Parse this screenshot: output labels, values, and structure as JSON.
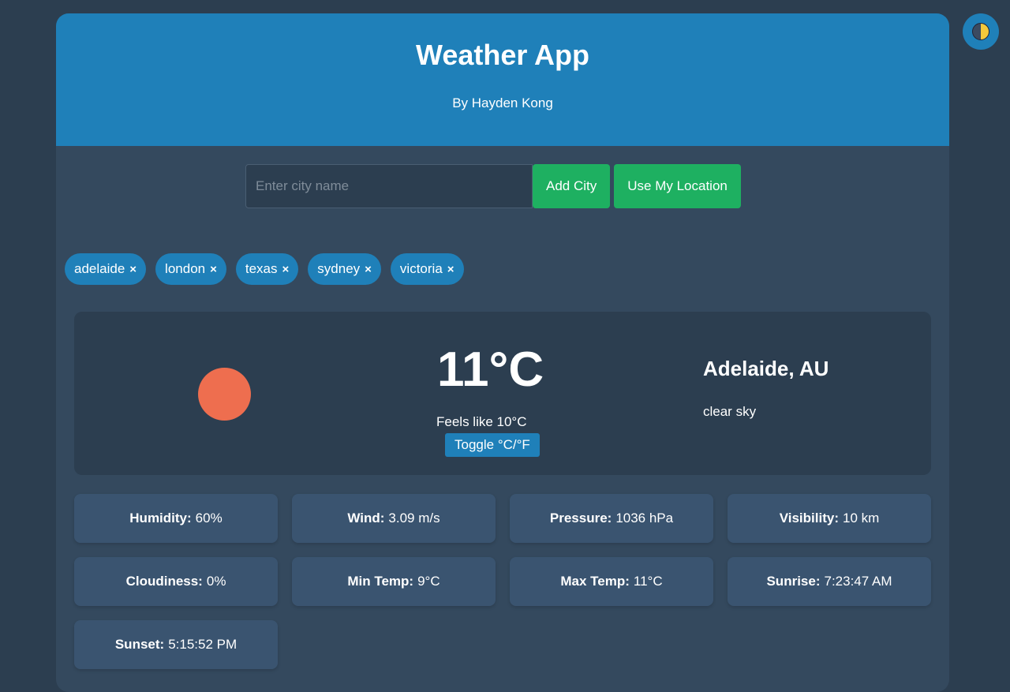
{
  "theme_toggle": {
    "icon": "half-moon-icon",
    "colors": {
      "bg": "#1f80b9",
      "sun": "#f4c93b"
    }
  },
  "header": {
    "title": "Weather App",
    "subtitle": "By Hayden Kong"
  },
  "search": {
    "placeholder": "Enter city name",
    "value": "",
    "add_label": "Add City",
    "location_label": "Use My Location"
  },
  "cities": [
    {
      "label": "adelaide",
      "remove": "×"
    },
    {
      "label": "london",
      "remove": "×"
    },
    {
      "label": "texas",
      "remove": "×"
    },
    {
      "label": "sydney",
      "remove": "×"
    },
    {
      "label": "victoria",
      "remove": "×"
    }
  ],
  "current": {
    "icon": "sun-icon",
    "temperature": "11°C",
    "feels_like": "Feels like 10°C",
    "toggle_label": "Toggle °C/°F",
    "city": "Adelaide, AU",
    "description": "clear sky"
  },
  "details": [
    {
      "label": "Humidity:",
      "value": "60%"
    },
    {
      "label": "Wind:",
      "value": "3.09 m/s"
    },
    {
      "label": "Pressure:",
      "value": "1036 hPa"
    },
    {
      "label": "Visibility:",
      "value": "10 km"
    },
    {
      "label": "Cloudiness:",
      "value": "0%"
    },
    {
      "label": "Min Temp:",
      "value": "9°C"
    },
    {
      "label": "Max Temp:",
      "value": "11°C"
    },
    {
      "label": "Sunrise:",
      "value": "7:23:47 AM"
    },
    {
      "label": "Sunset:",
      "value": "5:15:52 PM"
    }
  ],
  "colors": {
    "background": "#2c3e50",
    "panel": "#34495e",
    "accent": "#1f80b9",
    "button": "#1eb061",
    "sun": "#ee6e4f"
  }
}
